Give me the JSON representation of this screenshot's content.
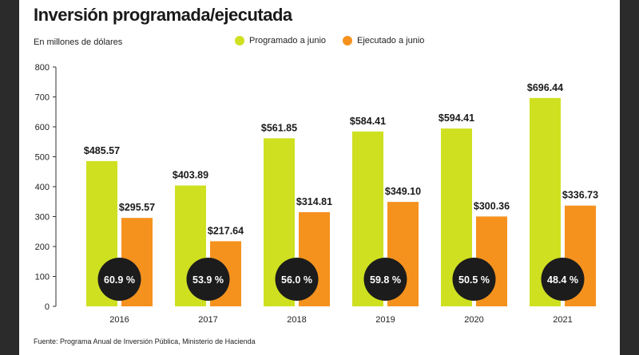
{
  "title": "Inversión programada/ejecutada",
  "unit_note": "En millones de dólares",
  "legend": {
    "programado": "Programado a junio",
    "ejecutado": "Ejecutado a junio"
  },
  "source": "Fuente: Programa Anual de Inversión Pública, Ministerio de Hacienda",
  "colors": {
    "programado": "#cfe021",
    "ejecutado": "#f5921e",
    "circle": "#1c1c1c"
  },
  "chart_data": {
    "type": "bar",
    "categories": [
      "2016",
      "2017",
      "2018",
      "2019",
      "2020",
      "2021"
    ],
    "series": [
      {
        "name": "Programado a junio",
        "values": [
          485.57,
          403.89,
          561.85,
          584.41,
          594.41,
          696.44
        ],
        "labels": [
          "$485.57",
          "$403.89",
          "$561.85",
          "$584.41",
          "$594.41",
          "$696.44"
        ]
      },
      {
        "name": "Ejecutado a junio",
        "values": [
          295.57,
          217.64,
          314.81,
          349.1,
          300.36,
          336.73
        ],
        "labels": [
          "$295.57",
          "$217.64",
          "$314.81",
          "$349.10",
          "$300.36",
          "$336.73"
        ]
      }
    ],
    "execution_pct": [
      "60.9 %",
      "53.9 %",
      "56.0 %",
      "59.8 %",
      "50.5 %",
      "48.4 %"
    ],
    "ylim": [
      0,
      800
    ],
    "yticks": [
      0,
      100,
      200,
      300,
      400,
      500,
      600,
      700,
      800
    ],
    "ytick_labels": [
      "0",
      "100",
      "200",
      "300",
      "400",
      "500",
      "600",
      "700",
      "800"
    ],
    "grid": false,
    "legend_position": "top"
  }
}
